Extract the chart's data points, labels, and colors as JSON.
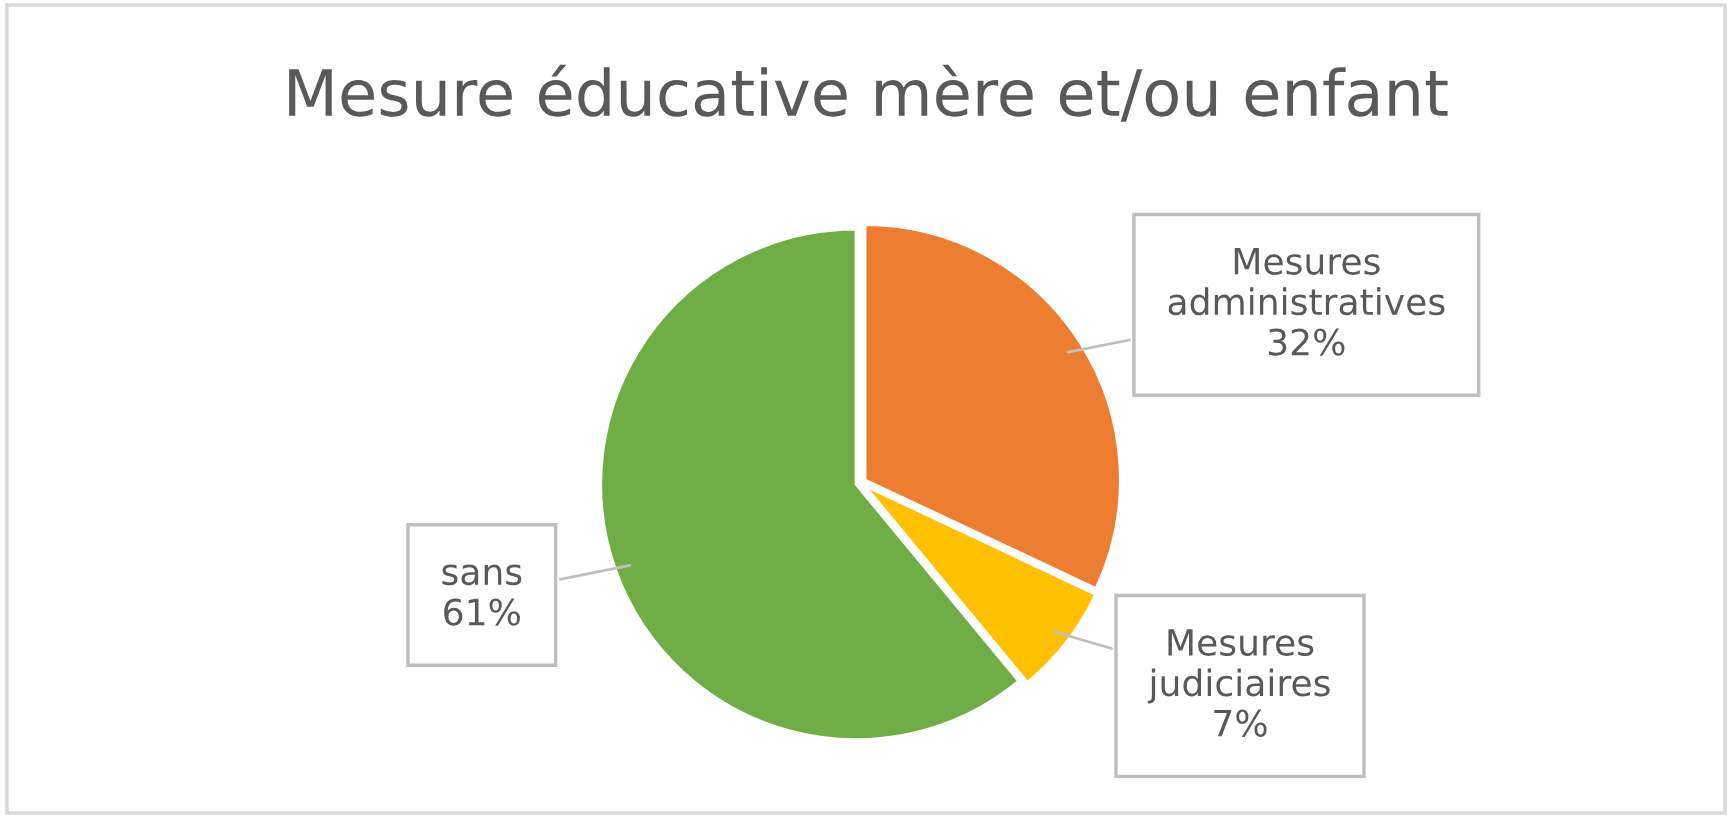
{
  "chart_data": {
    "type": "pie",
    "title": "Mesure éducative mère et/ou enfant",
    "categories": [
      "Mesures administratives",
      "Mesures judiciaires",
      "sans"
    ],
    "values": [
      32,
      7,
      61
    ],
    "colors": [
      "#ed7d31",
      "#ffc000",
      "#70ad47"
    ],
    "value_labels": [
      "32%",
      "7%",
      "61%"
    ],
    "legend": false
  }
}
